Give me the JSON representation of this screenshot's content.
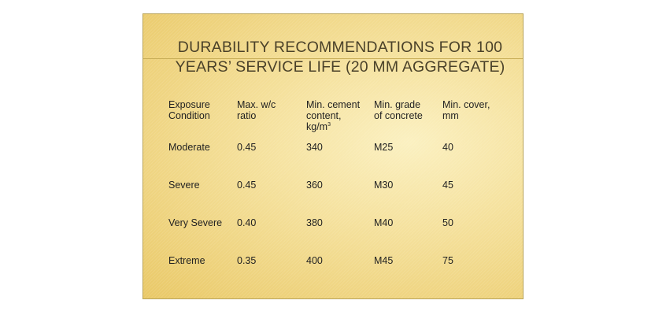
{
  "title": {
    "line1": "DURABILITY RECOMMENDATIONS FOR 100",
    "line2": "YEARS’ SERVICE LIFE (20 MM AGGREGATE)"
  },
  "table": {
    "headers": {
      "exposure": [
        "Exposure",
        "Condition"
      ],
      "wc_ratio": [
        "Max. w/c",
        "ratio"
      ],
      "cement": [
        "Min. cement",
        "content,",
        "kg/m"
      ],
      "cement_unit_sup": "3",
      "grade": [
        "Min. grade",
        "of concrete"
      ],
      "cover": [
        "Min. cover,",
        "mm"
      ]
    },
    "rows": [
      {
        "condition": "Moderate",
        "wc_ratio": "0.45",
        "cement": "340",
        "grade": "M25",
        "cover": "40"
      },
      {
        "condition": "Severe",
        "wc_ratio": "0.45",
        "cement": "360",
        "grade": "M30",
        "cover": "45"
      },
      {
        "condition": "Very Severe",
        "wc_ratio": "0.40",
        "cement": "380",
        "grade": "M40",
        "cover": "50"
      },
      {
        "condition": "Extreme",
        "wc_ratio": "0.35",
        "cement": "400",
        "grade": "M45",
        "cover": "75"
      }
    ]
  }
}
